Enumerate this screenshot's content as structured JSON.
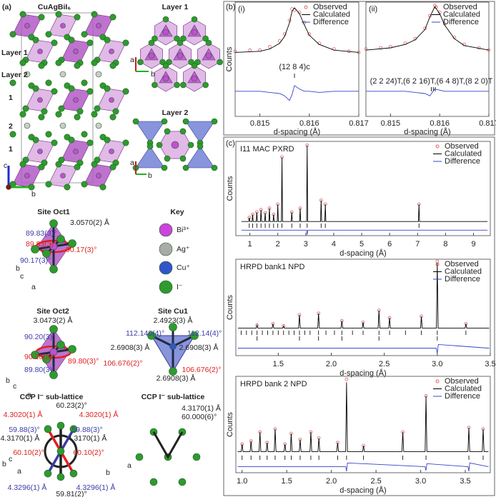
{
  "panel_a": {
    "label": "(a)",
    "structure": {
      "title": "CuAgBiI₆",
      "layers": [
        "Layer 1",
        "Layer 2",
        "1",
        "2",
        "1"
      ],
      "axes": [
        "c",
        "b"
      ]
    },
    "layer1": {
      "title": "Layer 1",
      "axes": [
        "a",
        "b"
      ]
    },
    "layer2": {
      "title": "Layer 2",
      "axes": [
        "a",
        "b"
      ]
    },
    "oct1": {
      "title": "Site Oct1",
      "bond": "3.0570(2) Å",
      "angles_blue": [
        "89.83(3)°",
        "90.17(3)°"
      ],
      "angles_red": [
        "89.83(3)°",
        "90.17(3)°"
      ],
      "axes": [
        "b",
        "c",
        "a"
      ]
    },
    "key": {
      "title": "Key",
      "items": [
        "Bi³⁺",
        "Ag⁺",
        "Cu⁺",
        "I⁻"
      ]
    },
    "oct2": {
      "title": "Site Oct2",
      "bond": "3.0473(2) Å",
      "angles_blue": [
        "90.20(3)°",
        "89.80(3)°"
      ],
      "angles_red": [
        "90.20(3)°",
        "89.80(3)°"
      ],
      "axes": [
        "b",
        "c",
        "a"
      ]
    },
    "cu1": {
      "title": "Site Cu1",
      "bond": "2.4923(3) Å",
      "angles_blue": [
        "112.140(4)°",
        "112.14(4)°"
      ],
      "bonds": [
        "2.6908(3) Å",
        "2.6908(3) Å",
        "2.6908(3) Å"
      ],
      "angles_red": [
        "106.676(2)°",
        "106.676(2)°"
      ]
    },
    "ccp1": {
      "title": "CCP I⁻ sub-lattice",
      "angles_black": [
        "60.23(2)°",
        "59.81(2)°"
      ],
      "red": [
        "4.3020(1) Å",
        "4.3020(1) Å",
        "60.10(2)°",
        "60.10(2)°"
      ],
      "blue": [
        "59.88(3)°",
        "59.88(3)°",
        "4.3296(1) Å",
        "4.3296(1) Å"
      ],
      "black": [
        "4.3170(1) Å",
        "4.3170(1) Å"
      ],
      "axes": [
        "b",
        "c",
        "a",
        "b",
        "a"
      ]
    },
    "ccp2": {
      "title": "CCP I⁻ sub-lattice",
      "distance": "4.3170(1) Å",
      "angle": "60.000(6)°"
    }
  },
  "panel_b_label": "(b)",
  "panel_c_label": "(c)",
  "chart_data": [
    {
      "type": "line",
      "panel": "(i)",
      "xlabel": "d-spacing (Å)",
      "ylabel": "Counts",
      "xlim": [
        0.8145,
        0.817
      ],
      "xticks": [
        0.815,
        0.816,
        0.817
      ],
      "ylim": [
        0,
        100
      ],
      "annotation": "(12 8 4)c",
      "reflection_rows": [
        [
          0.8157
        ]
      ],
      "series": [
        {
          "name": "Observed",
          "color": "#e06060",
          "marker": true,
          "x": [
            0.8145,
            0.8148,
            0.815,
            0.8152,
            0.8154,
            0.8155,
            0.8156,
            0.81565,
            0.8157,
            0.8158,
            0.8159,
            0.816,
            0.8162,
            0.8165,
            0.8168,
            0.817
          ],
          "values": [
            57,
            58,
            58,
            61,
            66,
            72,
            84,
            94,
            93,
            91,
            82,
            72,
            64,
            59,
            57,
            56
          ]
        },
        {
          "name": "Calculated",
          "color": "#000000",
          "x": [
            0.8145,
            0.815,
            0.8152,
            0.8154,
            0.8155,
            0.8156,
            0.81565,
            0.8157,
            0.8158,
            0.8159,
            0.816,
            0.8162,
            0.8165,
            0.817
          ],
          "values": [
            56,
            57,
            59,
            64,
            70,
            82,
            92,
            95,
            90,
            80,
            71,
            63,
            58,
            56
          ]
        },
        {
          "name": "Difference",
          "color": "#3344cc",
          "x": [
            0.8145,
            0.815,
            0.8152,
            0.8154,
            0.8155,
            0.8156,
            0.81565,
            0.8157,
            0.8158,
            0.8159,
            0.816,
            0.8162,
            0.8165,
            0.817
          ],
          "values": [
            22,
            22,
            21,
            20,
            18,
            14,
            19,
            27,
            24,
            22,
            22,
            21,
            22,
            22
          ]
        }
      ]
    },
    {
      "type": "line",
      "panel": "(ii)",
      "xlabel": "d-spacing (Å)",
      "xlim": [
        0.8145,
        0.817
      ],
      "xticks": [
        0.815,
        0.816,
        0.817
      ],
      "ylim": [
        0,
        100
      ],
      "annotation": "(2 2 24)T,(6 2 16)T,(6 4 8)T,(8 2 0)T",
      "reflection_rows": [
        [
          0.81583,
          0.81587,
          0.81591
        ]
      ],
      "series": [
        {
          "name": "Observed",
          "color": "#e06060",
          "marker": true,
          "x": [
            0.8145,
            0.8148,
            0.815,
            0.8153,
            0.8155,
            0.8157,
            0.8158,
            0.8159,
            0.816,
            0.8161,
            0.8163,
            0.8165,
            0.8168,
            0.817
          ],
          "values": [
            59,
            60,
            61,
            64,
            68,
            77,
            88,
            97,
            91,
            81,
            69,
            63,
            60,
            58
          ]
        },
        {
          "name": "Calculated",
          "color": "#000000",
          "x": [
            0.8145,
            0.815,
            0.8153,
            0.8155,
            0.8157,
            0.8158,
            0.8159,
            0.816,
            0.8161,
            0.8163,
            0.8165,
            0.817
          ],
          "values": [
            58,
            60,
            63,
            67,
            76,
            87,
            96,
            90,
            80,
            68,
            62,
            58
          ]
        },
        {
          "name": "Difference",
          "color": "#3344cc",
          "x": [
            0.8145,
            0.815,
            0.8153,
            0.8155,
            0.8157,
            0.8158,
            0.8159,
            0.816,
            0.8161,
            0.8163,
            0.8165,
            0.817
          ],
          "values": [
            22,
            22,
            22,
            21,
            20,
            18,
            24,
            23,
            22,
            22,
            22,
            22
          ]
        }
      ]
    },
    {
      "type": "line",
      "title": "I11 MAC PXRD",
      "xlabel": "d-spacing (Å)",
      "ylabel": "Counts",
      "xlim": [
        0.5,
        9.6
      ],
      "xticks": [
        1,
        2,
        3,
        4,
        5,
        6,
        7,
        8,
        9
      ],
      "ylim": [
        -15,
        105
      ],
      "reflection_rows": [
        [
          0.98,
          1.1,
          1.25,
          1.4,
          1.55,
          1.7,
          1.85,
          2.0,
          2.15,
          2.5,
          2.8,
          3.05,
          3.55,
          3.7,
          7.05
        ]
      ],
      "series": [
        {
          "name": "Observed",
          "color": "#e06060",
          "marker": true,
          "x": [
            0.98,
            1.1,
            1.25,
            1.4,
            1.55,
            1.7,
            1.85,
            2.0,
            2.15,
            2.5,
            2.8,
            3.05,
            3.55,
            3.7,
            7.05
          ],
          "values": [
            8,
            12,
            15,
            18,
            14,
            20,
            12,
            25,
            85,
            15,
            20,
            100,
            30,
            25,
            25
          ]
        },
        {
          "name": "Calculated",
          "color": "#000000",
          "x": [
            0.7,
            0.96,
            0.98,
            1.0,
            1.08,
            1.1,
            1.12,
            1.23,
            1.25,
            1.27,
            1.38,
            1.4,
            1.42,
            1.53,
            1.55,
            1.57,
            1.68,
            1.7,
            1.72,
            1.83,
            1.85,
            1.87,
            1.98,
            2.0,
            2.02,
            2.13,
            2.15,
            2.17,
            2.48,
            2.5,
            2.52,
            2.78,
            2.8,
            2.82,
            3.03,
            3.05,
            3.07,
            3.53,
            3.55,
            3.57,
            3.68,
            3.7,
            3.72,
            7.03,
            7.05,
            7.07,
            9.5
          ],
          "values": [
            3,
            3,
            8,
            3,
            3,
            12,
            3,
            3,
            15,
            3,
            3,
            18,
            3,
            3,
            14,
            3,
            3,
            20,
            3,
            3,
            12,
            3,
            3,
            25,
            3,
            3,
            85,
            3,
            3,
            15,
            3,
            3,
            20,
            3,
            3,
            100,
            3,
            3,
            30,
            3,
            3,
            25,
            3,
            3,
            25,
            3,
            3
          ]
        },
        {
          "name": "Difference",
          "color": "#3344cc",
          "x": [
            0.7,
            3.03,
            3.05,
            3.07,
            9.5
          ],
          "values": [
            -8,
            -8,
            -14,
            -8,
            -8
          ]
        }
      ]
    },
    {
      "type": "line",
      "title": "HRPD bank1 NPD",
      "xlabel": "d-spacing (Å)",
      "ylabel": "Counts",
      "xlim": [
        1.1,
        3.5
      ],
      "xticks": [
        1.5,
        {
          "value": 2,
          "label": "2.0"
        },
        2.5,
        {
          "value": 3,
          "label": "3.0"
        },
        3.5
      ],
      "ylim": [
        -25,
        105
      ],
      "reflection_rows": [
        [
          1.15,
          1.2,
          1.25,
          1.3,
          1.35,
          1.4,
          1.45,
          1.5,
          1.55,
          1.6,
          1.65,
          1.7,
          1.75,
          1.8,
          1.88,
          1.95,
          2.03,
          2.1,
          2.2,
          2.3,
          2.45,
          2.55,
          2.7,
          2.85,
          3.0,
          3.27
        ],
        [
          1.3,
          1.7,
          1.88,
          2.1,
          2.45,
          3.0
        ]
      ],
      "series": [
        {
          "name": "Observed",
          "color": "#e06060",
          "marker": true,
          "x": [
            1.3,
            1.45,
            1.55,
            1.7,
            1.88,
            2.1,
            2.3,
            2.45,
            2.55,
            2.85,
            3.0,
            3.27
          ],
          "values": [
            16,
            18,
            15,
            30,
            32,
            22,
            20,
            36,
            26,
            28,
            102,
            18
          ]
        },
        {
          "name": "Calculated",
          "color": "#000000",
          "x": [
            1.12,
            1.292,
            1.3,
            1.308,
            1.442,
            1.45,
            1.458,
            1.542,
            1.55,
            1.558,
            1.692,
            1.7,
            1.708,
            1.872,
            1.88,
            1.888,
            2.092,
            2.1,
            2.108,
            2.292,
            2.3,
            2.308,
            2.442,
            2.45,
            2.458,
            2.542,
            2.55,
            2.558,
            2.842,
            2.85,
            2.858,
            2.992,
            3.0,
            3.008,
            3.262,
            3.27,
            3.278,
            3.49
          ],
          "values": [
            12,
            12,
            16,
            12,
            12,
            18,
            12,
            12,
            15,
            12,
            12,
            30,
            12,
            12,
            32,
            12,
            12,
            22,
            12,
            12,
            20,
            12,
            12,
            36,
            12,
            12,
            26,
            12,
            12,
            28,
            12,
            12,
            100,
            12,
            12,
            18,
            12,
            12
          ]
        },
        {
          "name": "Difference",
          "color": "#3344cc",
          "x": [
            1.12,
            2.99,
            3.0,
            3.01,
            3.49
          ],
          "values": [
            -15,
            -15,
            -22,
            -10,
            -15
          ]
        }
      ]
    },
    {
      "type": "line",
      "title": "HRPD bank 2 NPD",
      "xlabel": "d-spacing (Å)",
      "ylabel": "Counts",
      "xlim": [
        0.93,
        3.78
      ],
      "xticks": [
        {
          "value": 1,
          "label": "1.0"
        },
        1.5,
        {
          "value": 2,
          "label": "2.0"
        },
        2.5,
        {
          "value": 3,
          "label": "3.0"
        },
        3.5
      ],
      "ylim": [
        -20,
        108
      ],
      "reflection_rows": [
        [
          1.0,
          1.1,
          1.2,
          1.28,
          1.37,
          1.48,
          1.55,
          1.65,
          1.77,
          1.86,
          2.07,
          2.17,
          2.36,
          2.8,
          3.06,
          3.54,
          3.7
        ]
      ],
      "series": [
        {
          "name": "Observed",
          "color": "#e06060",
          "marker": true,
          "x": [
            1.0,
            1.1,
            1.2,
            1.28,
            1.37,
            1.48,
            1.55,
            1.65,
            1.77,
            1.86,
            2.07,
            2.17,
            2.36,
            2.8,
            3.06,
            3.54,
            3.7
          ],
          "values": [
            18,
            22,
            34,
            20,
            38,
            18,
            32,
            24,
            34,
            26,
            20,
            104,
            16,
            34,
            82,
            40,
            38
          ]
        },
        {
          "name": "Calculated",
          "color": "#000000",
          "x": [
            0.95,
            0.99,
            1.0,
            1.01,
            1.09,
            1.1,
            1.11,
            1.19,
            1.2,
            1.21,
            1.27,
            1.28,
            1.29,
            1.36,
            1.37,
            1.38,
            1.47,
            1.48,
            1.49,
            1.54,
            1.55,
            1.56,
            1.64,
            1.65,
            1.66,
            1.76,
            1.77,
            1.78,
            1.85,
            1.86,
            1.87,
            2.06,
            2.07,
            2.08,
            2.16,
            2.17,
            2.18,
            2.35,
            2.36,
            2.37,
            2.79,
            2.8,
            2.81,
            3.05,
            3.06,
            3.07,
            3.53,
            3.54,
            3.55,
            3.69,
            3.7,
            3.71,
            3.76
          ],
          "values": [
            8,
            8,
            18,
            8,
            8,
            22,
            8,
            8,
            34,
            8,
            8,
            20,
            8,
            8,
            38,
            8,
            8,
            18,
            8,
            8,
            32,
            8,
            8,
            24,
            8,
            8,
            34,
            8,
            8,
            26,
            8,
            8,
            20,
            8,
            8,
            100,
            8,
            8,
            16,
            8,
            8,
            34,
            8,
            8,
            82,
            8,
            8,
            40,
            8,
            8,
            38,
            8,
            8
          ]
        },
        {
          "name": "Difference",
          "color": "#3344cc",
          "x": [
            0.95,
            2.16,
            2.17,
            2.18,
            3.05,
            3.06,
            3.07,
            3.53,
            3.54,
            3.55,
            3.76
          ],
          "values": [
            -12,
            -12,
            -18,
            -7,
            -12,
            -17,
            -8,
            -12,
            -18,
            -7,
            -12
          ]
        }
      ]
    }
  ]
}
